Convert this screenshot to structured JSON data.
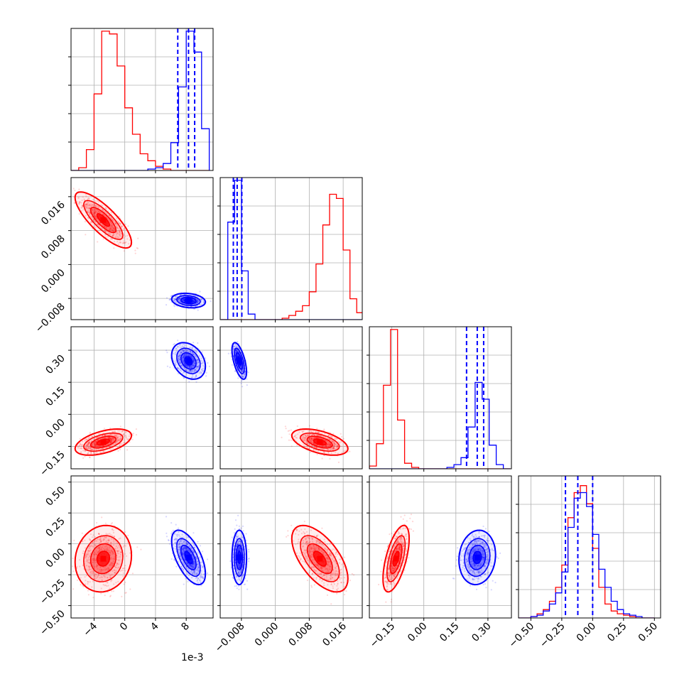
{
  "chart_data": {
    "type": "corner",
    "parameters": 4,
    "grid": true,
    "colors": {
      "posterior_a": "#ff0000",
      "posterior_b": "#0000ff"
    },
    "x_offset_label": "1e-3",
    "axes": {
      "p0": {
        "range": [
          -7.0,
          11.5
        ],
        "ticks": [
          -4,
          0,
          4,
          8
        ],
        "tick_labels": [
          "−4",
          "0",
          "4",
          "8"
        ]
      },
      "p1": {
        "range": [
          -0.013,
          0.0205
        ],
        "ticks": [
          -0.008,
          0.0,
          0.008,
          0.016
        ],
        "tick_labels": [
          "−0.008",
          "0.000",
          "0.008",
          "0.016"
        ]
      },
      "p2": {
        "range": [
          -0.255,
          0.41
        ],
        "ticks": [
          -0.15,
          0.0,
          0.15,
          0.3
        ],
        "tick_labels": [
          "−0.15",
          "0.00",
          "0.15",
          "0.30"
        ]
      },
      "p3": {
        "range": [
          -0.6,
          0.55
        ],
        "ticks": [
          -0.5,
          -0.25,
          0.0,
          0.25,
          0.5
        ],
        "tick_labels": [
          "−0.50",
          "−0.25",
          "0.00",
          "0.25",
          "0.50"
        ]
      }
    },
    "posteriors": [
      {
        "color_key": "posterior_a",
        "means": [
          -2.8,
          0.0105,
          -0.13,
          -0.12
        ],
        "sds": [
          1.5,
          0.0027,
          0.025,
          0.11
        ],
        "corr": {
          "0-1": -0.8,
          "0-2": 0.5,
          "0-3": 0.1,
          "1-2": -0.5,
          "1-3": -0.6,
          "2-3": 0.6
        }
      },
      {
        "color_key": "posterior_b",
        "means": [
          8.3,
          -0.0085,
          0.25,
          -0.11
        ],
        "sds": [
          0.9,
          0.0007,
          0.035,
          0.09
        ],
        "corr": {
          "0-1": -0.2,
          "0-2": -0.3,
          "0-3": -0.6,
          "1-2": -0.6,
          "1-3": 0.0,
          "2-3": 0.1
        }
      }
    ],
    "quantile_lines": [
      {
        "param": 0,
        "values": [
          6.9,
          8.3,
          9.1
        ]
      },
      {
        "param": 1,
        "values": [
          -0.0099,
          -0.009,
          -0.0079
        ]
      },
      {
        "param": 2,
        "values": [
          0.2,
          0.25,
          0.28
        ]
      },
      {
        "param": 3,
        "values": [
          -0.22,
          -0.12,
          0.0
        ]
      }
    ],
    "histograms": {
      "p0": {
        "bin_edges": [
          -7,
          -6,
          -5,
          -4,
          -3,
          -2,
          -1,
          0,
          1,
          2,
          3,
          4,
          5,
          6,
          7,
          8,
          9,
          10,
          11
        ],
        "posterior_a": [
          0.0,
          0.02,
          0.15,
          0.55,
          1.0,
          0.98,
          0.75,
          0.45,
          0.26,
          0.12,
          0.07,
          0.03,
          0.01,
          0.0,
          0.0,
          0.0,
          0.0,
          0.0
        ],
        "posterior_b": [
          0.0,
          0.0,
          0.0,
          0.0,
          0.0,
          0.0,
          0.0,
          0.0,
          0.0,
          0.0,
          0.01,
          0.02,
          0.05,
          0.2,
          0.6,
          1.0,
          0.85,
          0.3
        ]
      },
      "p1": {
        "bin_edges": [
          -0.0128,
          -0.0112,
          -0.0096,
          -0.008,
          -0.0064,
          -0.0048,
          -0.0032,
          -0.0016,
          0.0,
          0.0016,
          0.0032,
          0.0048,
          0.0064,
          0.008,
          0.0096,
          0.0112,
          0.0128,
          0.0144,
          0.016,
          0.0176,
          0.0192,
          0.0208
        ],
        "posterior_a": [
          0.0,
          0.0,
          0.0,
          0.0,
          0.0,
          0.0,
          0.0,
          0.0,
          0.0,
          0.01,
          0.03,
          0.06,
          0.1,
          0.2,
          0.4,
          0.68,
          0.9,
          0.87,
          0.5,
          0.15,
          0.05
        ],
        "posterior_b": [
          0.0,
          0.7,
          1.0,
          0.35,
          0.04,
          0.0,
          0.0,
          0.0,
          0.0,
          0.0,
          0.0,
          0.0,
          0.0,
          0.0,
          0.0,
          0.0,
          0.0,
          0.0,
          0.0,
          0.0,
          0.0
        ]
      },
      "p2": {
        "bin_edges": [
          -0.255,
          -0.222,
          -0.189,
          -0.156,
          -0.123,
          -0.09,
          -0.057,
          -0.024,
          0.009,
          0.042,
          0.075,
          0.108,
          0.141,
          0.174,
          0.207,
          0.24,
          0.273,
          0.306,
          0.339,
          0.372,
          0.405
        ],
        "posterior_a": [
          0.02,
          0.18,
          0.6,
          1.0,
          0.35,
          0.04,
          0.01,
          0.0,
          0.0,
          0.0,
          0.0,
          0.0,
          0.0,
          0.0,
          0.0,
          0.0,
          0.0,
          0.0,
          0.0,
          0.0
        ],
        "posterior_b": [
          0.0,
          0.0,
          0.0,
          0.0,
          0.0,
          0.0,
          0.0,
          0.0,
          0.0,
          0.0,
          0.0,
          0.01,
          0.03,
          0.08,
          0.3,
          0.62,
          0.5,
          0.17,
          0.03,
          0.0
        ]
      },
      "p3": {
        "bin_edges": [
          -0.6,
          -0.55,
          -0.5,
          -0.45,
          -0.4,
          -0.35,
          -0.3,
          -0.25,
          -0.2,
          -0.15,
          -0.1,
          -0.05,
          0.0,
          0.05,
          0.1,
          0.15,
          0.2,
          0.25,
          0.3,
          0.35,
          0.4,
          0.45,
          0.5
        ],
        "posterior_a": [
          0.0,
          0.0,
          0.01,
          0.03,
          0.06,
          0.12,
          0.22,
          0.38,
          0.72,
          0.9,
          0.95,
          0.82,
          0.5,
          0.22,
          0.1,
          0.05,
          0.03,
          0.02,
          0.01,
          0.0,
          0.0,
          0.0
        ],
        "posterior_b": [
          0.0,
          0.0,
          0.01,
          0.02,
          0.05,
          0.1,
          0.18,
          0.33,
          0.65,
          0.86,
          0.9,
          0.8,
          0.6,
          0.35,
          0.22,
          0.12,
          0.06,
          0.03,
          0.02,
          0.01,
          0.0,
          0.0
        ]
      }
    }
  }
}
